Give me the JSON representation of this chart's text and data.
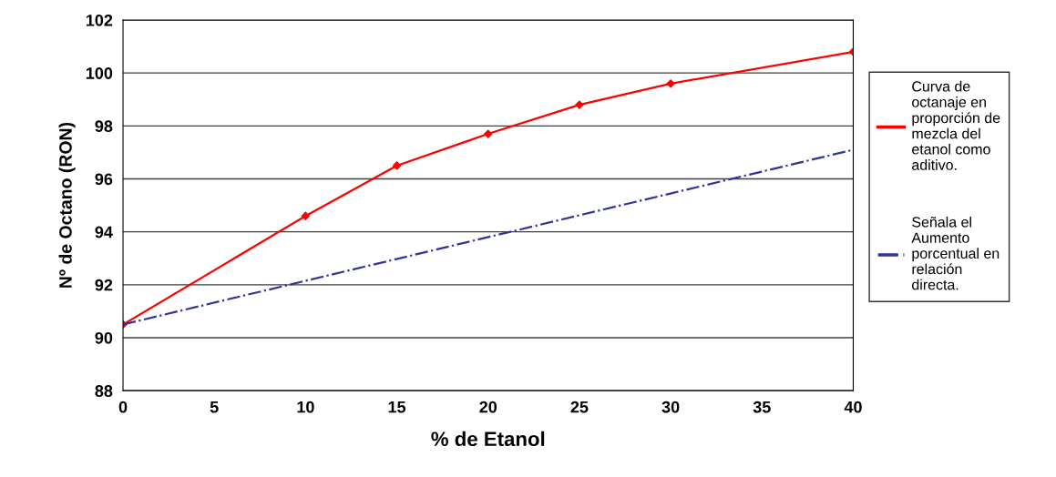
{
  "chart_data": {
    "type": "line",
    "xlabel": "% de Etanol",
    "ylabel": "Nº de Octano (RON)",
    "xlim": [
      0,
      40
    ],
    "xticks": [
      0,
      5,
      10,
      15,
      20,
      25,
      30,
      35,
      40
    ],
    "ylim": [
      88,
      102
    ],
    "yticks": [
      88,
      90,
      92,
      94,
      96,
      98,
      100,
      102
    ],
    "grid": "y",
    "legend": "right",
    "series": [
      {
        "name": "Curva de octanaje en proporción de mezcla del etanol como aditivo.",
        "color": "#ff0000",
        "x": [
          0,
          10,
          15,
          20,
          25,
          30,
          40
        ],
        "values": [
          90.5,
          94.6,
          96.5,
          97.7,
          98.8,
          99.6,
          100.8
        ],
        "marker": "diamond",
        "line_style": "solid"
      },
      {
        "name": "Señala el Aumento porcentual en relación directa.",
        "color": "#333399",
        "x": [
          0,
          40
        ],
        "values": [
          90.5,
          97.1
        ],
        "marker": "none",
        "line_style": "dashdot"
      }
    ]
  }
}
